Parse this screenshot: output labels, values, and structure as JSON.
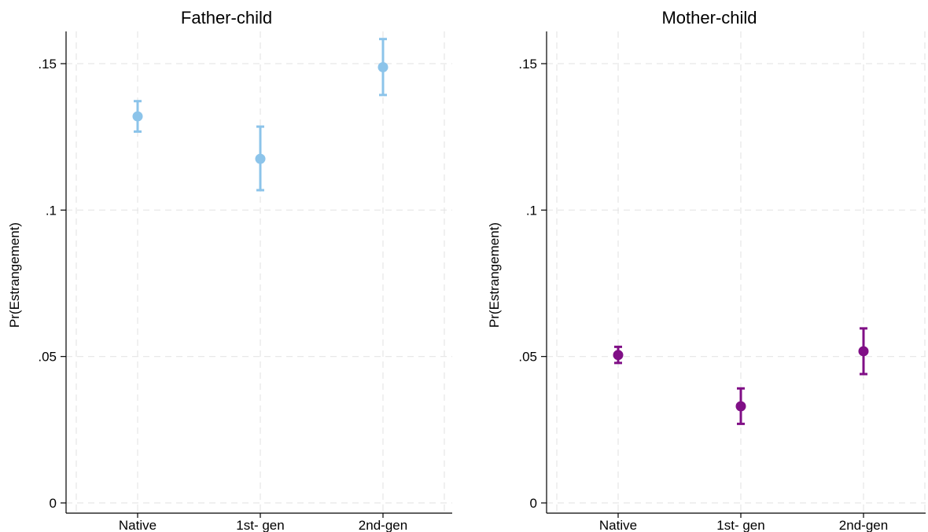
{
  "chart_data": [
    {
      "type": "scatter",
      "title": "Father-child",
      "ylabel": "Pr(Estrangement)",
      "xlabel": "",
      "categories": [
        "Native",
        "1st- gen",
        "2nd-gen"
      ],
      "yticks": [
        ".15",
        ".1",
        ".05",
        "0"
      ],
      "ytick_values": [
        0.15,
        0.1,
        0.05,
        0
      ],
      "ylim": [
        -0.002,
        0.161
      ],
      "grid": true,
      "color": "#8cc4ea",
      "series": [
        {
          "values": [
            0.132,
            0.1175,
            0.1488
          ],
          "ci_low": [
            0.1268,
            0.1068,
            0.1393
          ],
          "ci_high": [
            0.1372,
            0.1285,
            0.1584
          ]
        }
      ]
    },
    {
      "type": "scatter",
      "title": "Mother-child",
      "ylabel": "Pr(Estrangement)",
      "xlabel": "",
      "categories": [
        "Native",
        "1st- gen",
        "2nd-gen"
      ],
      "yticks": [
        ".15",
        ".1",
        ".05",
        "0"
      ],
      "ytick_values": [
        0.15,
        0.1,
        0.05,
        0
      ],
      "ylim": [
        -0.002,
        0.161
      ],
      "grid": true,
      "color": "#800f86",
      "series": [
        {
          "values": [
            0.0505,
            0.033,
            0.0518
          ],
          "ci_low": [
            0.0478,
            0.027,
            0.044
          ],
          "ci_high": [
            0.0533,
            0.0391,
            0.0596
          ]
        }
      ]
    }
  ]
}
